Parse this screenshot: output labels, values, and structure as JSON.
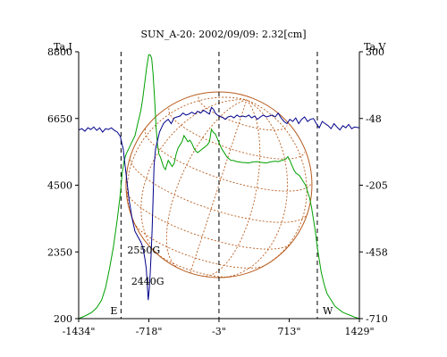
{
  "chart_data": {
    "type": "line",
    "title": "SUN_A-20: 2002/09/09: 2.32[cm]",
    "ylabel_left": "Ta,I",
    "ylabel_right": "Ta,V",
    "grid": false,
    "x_ticks": [
      "-1434\"",
      "-718\"",
      "-3\"",
      "713\"",
      "1429\""
    ],
    "x_tick_values": [
      -1434,
      -718,
      -3,
      713,
      1429
    ],
    "xlim": [
      -1434,
      1429
    ],
    "y_left_ticks": [
      "200",
      "2350",
      "4500",
      "6650",
      "8800"
    ],
    "y_left_tick_values": [
      200,
      2350,
      4500,
      6650,
      8800
    ],
    "ylim_left": [
      200,
      8800
    ],
    "y_right_ticks": [
      "-710",
      "-458",
      "-205",
      "-48",
      "300"
    ],
    "y_right_tick_values": [
      -710,
      -458,
      -205,
      -48,
      300
    ],
    "ylim_right": [
      -710,
      300
    ],
    "limb_markers": [
      {
        "label": "E",
        "x": -1002
      },
      {
        "label": "W",
        "x": 1000
      }
    ],
    "center_marker_x": -3,
    "annotations": [
      {
        "text": "2550G",
        "x": -770,
        "y": 2300
      },
      {
        "text": "2440G",
        "x": -730,
        "y": 1300
      }
    ],
    "colors": {
      "series_i": "#00a000",
      "series_v": "#00008b",
      "disk": "#b85c1e",
      "axis": "#000000"
    },
    "series": [
      {
        "axis": "left",
        "color": "#00a000",
        "x": [
          -1434,
          -1360,
          -1300,
          -1250,
          -1200,
          -1160,
          -1120,
          -1080,
          -1040,
          -1010,
          -990,
          -970,
          -950,
          -920,
          -890,
          -860,
          -830,
          -800,
          -780,
          -760,
          -740,
          -720,
          -705,
          -690,
          -675,
          -660,
          -645,
          -630,
          -615,
          -600,
          -590,
          -580,
          -570,
          -560,
          -550,
          -540,
          -520,
          -500,
          -480,
          -460,
          -440,
          -420,
          -400,
          -380,
          -360,
          -340,
          -320,
          -300,
          -280,
          -260,
          -240,
          -220,
          -200,
          -180,
          -160,
          -140,
          -120,
          -100,
          -80,
          -60,
          -40,
          -20,
          0,
          20,
          40,
          60,
          80,
          100,
          120,
          140,
          160,
          180,
          200,
          220,
          240,
          260,
          280,
          300,
          320,
          340,
          360,
          380,
          400,
          420,
          440,
          460,
          480,
          500,
          520,
          540,
          560,
          580,
          600,
          620,
          640,
          660,
          680,
          700,
          720,
          740,
          760,
          780,
          800,
          820,
          840,
          860,
          880,
          900,
          920,
          940,
          960,
          980,
          1000,
          1020,
          1040,
          1070,
          1100,
          1140,
          1180,
          1220,
          1260,
          1300,
          1340,
          1380,
          1429
        ],
        "y": [
          200,
          300,
          400,
          550,
          800,
          1200,
          1800,
          2500,
          3400,
          4200,
          4900,
          5300,
          5500,
          5700,
          5900,
          6100,
          6500,
          6900,
          7300,
          7800,
          8300,
          8700,
          8700,
          8600,
          8100,
          7300,
          6400,
          5800,
          5500,
          5400,
          5300,
          5200,
          5100,
          5050,
          5000,
          5100,
          5300,
          5200,
          5100,
          5200,
          5500,
          5700,
          5800,
          5900,
          6100,
          6000,
          5900,
          5950,
          5850,
          5700,
          5600,
          5550,
          5600,
          5650,
          5700,
          5750,
          5800,
          5900,
          6300,
          6200,
          6150,
          6000,
          5850,
          5700,
          5600,
          5500,
          5400,
          5350,
          5300,
          5300,
          5280,
          5260,
          5250,
          5240,
          5230,
          5230,
          5220,
          5220,
          5230,
          5250,
          5250,
          5260,
          5250,
          5240,
          5230,
          5220,
          5220,
          5230,
          5250,
          5260,
          5270,
          5270,
          5260,
          5280,
          5300,
          5320,
          5350,
          5420,
          5300,
          5150,
          5000,
          4900,
          4850,
          4800,
          4700,
          4600,
          4500,
          4300,
          4100,
          3800,
          3400,
          3000,
          2500,
          2100,
          1700,
          1300,
          1000,
          800,
          600,
          500,
          400,
          350,
          300,
          250,
          200
        ],
        "label_positions": [],
        "_unused": []
      },
      {
        "axis": "right",
        "color": "#00008b",
        "x": [
          -1434,
          -1400,
          -1370,
          -1340,
          -1310,
          -1280,
          -1250,
          -1220,
          -1190,
          -1160,
          -1130,
          -1100,
          -1070,
          -1040,
          -1010,
          -980,
          -950,
          -920,
          -890,
          -860,
          -830,
          -800,
          -780,
          -760,
          -745,
          -735,
          -725,
          -715,
          -705,
          -695,
          -685,
          -675,
          -665,
          -650,
          -630,
          -610,
          -590,
          -570,
          -550,
          -520,
          -490,
          -460,
          -430,
          -400,
          -370,
          -340,
          -310,
          -280,
          -250,
          -220,
          -190,
          -160,
          -130,
          -100,
          -80,
          -60,
          -40,
          -20,
          0,
          20,
          40,
          60,
          90,
          120,
          150,
          180,
          210,
          240,
          270,
          300,
          330,
          360,
          390,
          420,
          450,
          480,
          510,
          540,
          570,
          600,
          630,
          660,
          690,
          720,
          750,
          780,
          810,
          840,
          870,
          900,
          930,
          960,
          990,
          1020,
          1050,
          1080,
          1110,
          1140,
          1170,
          1200,
          1230,
          1260,
          1290,
          1320,
          1350,
          1380,
          1429
        ],
        "y": [
          -75,
          -72,
          -78,
          -70,
          -74,
          -68,
          -76,
          -70,
          -80,
          -72,
          -74,
          -70,
          -76,
          -80,
          -90,
          -120,
          -180,
          -260,
          -330,
          -380,
          -400,
          -420,
          -440,
          -480,
          -520,
          -580,
          -640,
          -600,
          -540,
          -470,
          -380,
          -260,
          -160,
          -120,
          -100,
          -80,
          -70,
          -60,
          -55,
          -50,
          -60,
          -45,
          -40,
          -35,
          -20,
          -30,
          -25,
          -15,
          -25,
          -10,
          -20,
          -5,
          -15,
          -25,
          10,
          0,
          -20,
          -30,
          -35,
          -40,
          -45,
          -50,
          -40,
          -35,
          -45,
          -30,
          -40,
          -35,
          -40,
          -30,
          -45,
          -35,
          -50,
          -40,
          -30,
          -40,
          -35,
          -30,
          -40,
          -20,
          -45,
          -55,
          -60,
          -50,
          -55,
          -45,
          -60,
          -50,
          -40,
          -55,
          -50,
          -48,
          -60,
          -70,
          -55,
          -60,
          -65,
          -72,
          -60,
          -68,
          -75,
          -65,
          -70,
          -62,
          -72,
          -68,
          -70
        ]
      }
    ],
    "legend": null
  }
}
